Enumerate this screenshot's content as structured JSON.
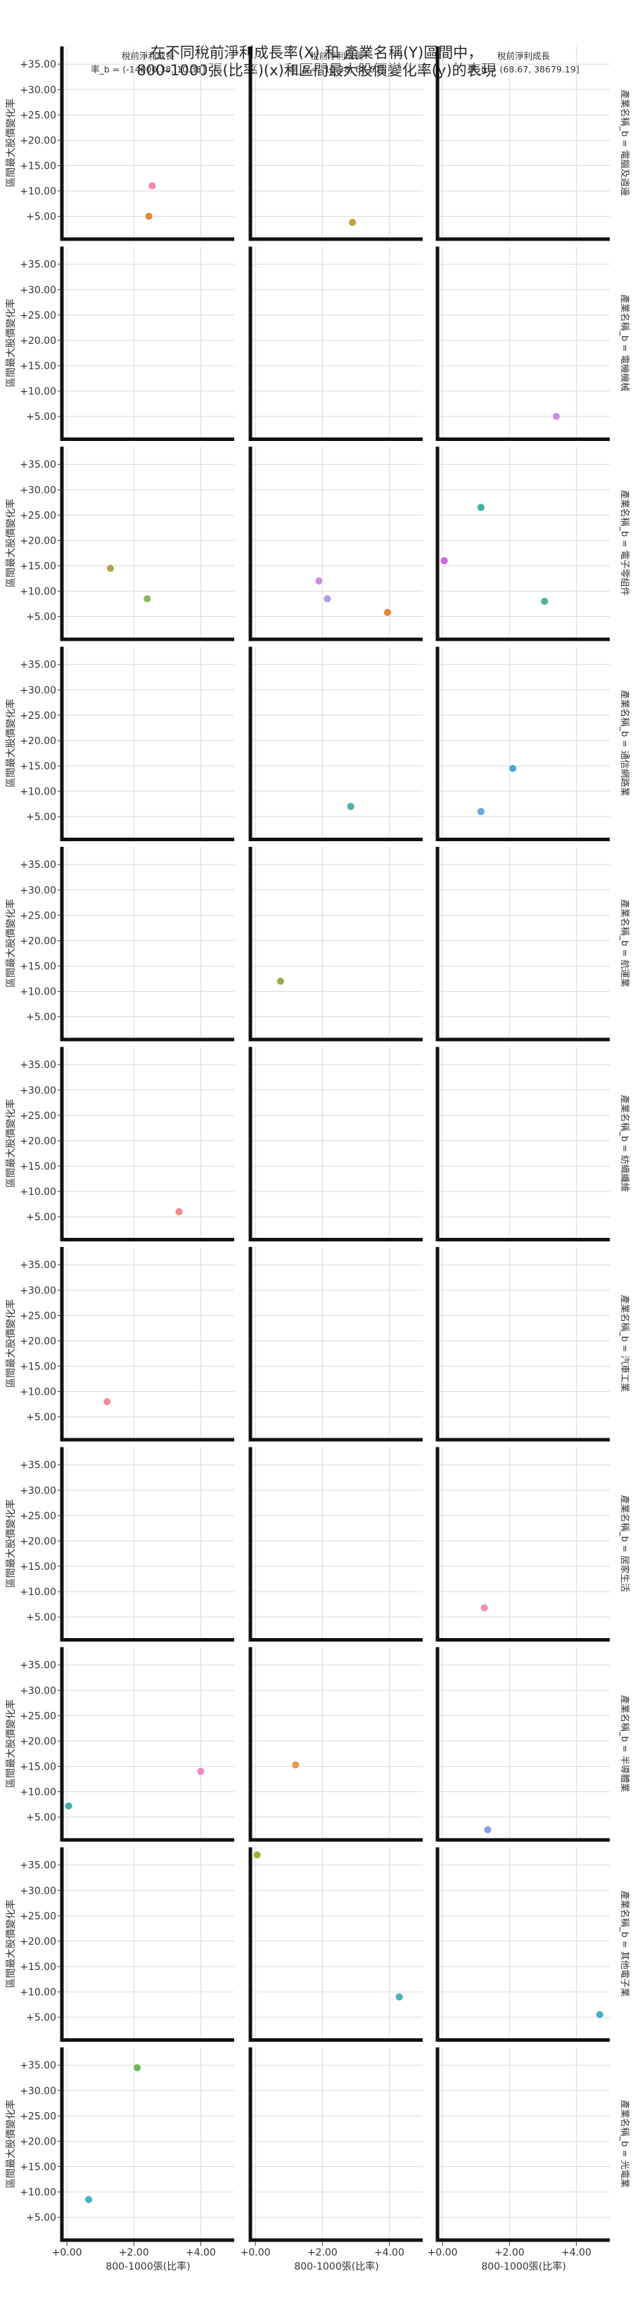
{
  "chart_data": {
    "type": "scatter",
    "title": "在不同稅前淨利成長率(X) 和 產業名稱(Y)區間中，\n800-1000張(比率)(x)和區間最大股價變化率(y)的表現",
    "xlabel": "800-1000張(比率)",
    "ylabel": "區間最大股價變化率",
    "columns": [
      "稅前淨利成長\n率_b = (-14000.38, 10.38]",
      "稅前淨利成長\n率_b = (10.38, 68.67]",
      "稅前淨利成長\n率_b = (68.67, 38679.19]"
    ],
    "rows": [
      "產業名稱_b = 電腦及週邊",
      "產業名稱_b = 電機機械",
      "產業名稱_b = 電子零組件",
      "產業名稱_b = 通信網路業",
      "產業名稱_b = 航運業",
      "產業名稱_b = 紡織纖維",
      "產業名稱_b = 汽車工業",
      "產業名稱_b = 居家生活",
      "產業名稱_b = 半導體業",
      "產業名稱_b = 其他電子業",
      "產業名稱_b = 光電業"
    ],
    "x_ticks": [
      "+0.00",
      "+2.00",
      "+4.00"
    ],
    "x_tick_values": [
      0,
      2,
      4
    ],
    "xlim": [
      -0.15,
      5.0
    ],
    "y_ticks": [
      "+5.00",
      "+10.00",
      "+15.00",
      "+20.00",
      "+25.00",
      "+30.00",
      "+35.00"
    ],
    "y_tick_values": [
      5,
      10,
      15,
      20,
      25,
      30,
      35
    ],
    "ylim": [
      0.5,
      38.5
    ],
    "grid": true,
    "points": [
      {
        "row": 0,
        "col": 0,
        "x": 2.55,
        "y": 11.0,
        "color": "#f28bb0"
      },
      {
        "row": 0,
        "col": 0,
        "x": 2.45,
        "y": 5.0,
        "color": "#e08a3c"
      },
      {
        "row": 0,
        "col": 1,
        "x": 2.9,
        "y": 3.8,
        "color": "#c4a24a"
      },
      {
        "row": 1,
        "col": 2,
        "x": 3.4,
        "y": 5.0,
        "color": "#cf8bec"
      },
      {
        "row": 2,
        "col": 0,
        "x": 1.3,
        "y": 14.5,
        "color": "#b8a44a"
      },
      {
        "row": 2,
        "col": 0,
        "x": 2.4,
        "y": 8.5,
        "color": "#8cb85a"
      },
      {
        "row": 2,
        "col": 1,
        "x": 1.9,
        "y": 12.0,
        "color": "#d18be8"
      },
      {
        "row": 2,
        "col": 1,
        "x": 2.15,
        "y": 8.5,
        "color": "#b49be8"
      },
      {
        "row": 2,
        "col": 1,
        "x": 3.95,
        "y": 5.8,
        "color": "#e08a3c"
      },
      {
        "row": 2,
        "col": 2,
        "x": 1.15,
        "y": 26.5,
        "color": "#3fb09e"
      },
      {
        "row": 2,
        "col": 2,
        "x": 0.05,
        "y": 16.0,
        "color": "#c96ae6"
      },
      {
        "row": 2,
        "col": 2,
        "x": 3.05,
        "y": 8.0,
        "color": "#52b48c"
      },
      {
        "row": 3,
        "col": 1,
        "x": 2.85,
        "y": 7.0,
        "color": "#4cb3b0"
      },
      {
        "row": 3,
        "col": 2,
        "x": 2.1,
        "y": 14.5,
        "color": "#4aa8d4"
      },
      {
        "row": 3,
        "col": 2,
        "x": 1.15,
        "y": 6.0,
        "color": "#6aa6d8"
      },
      {
        "row": 4,
        "col": 1,
        "x": 0.75,
        "y": 12.0,
        "color": "#9aad45"
      },
      {
        "row": 5,
        "col": 0,
        "x": 3.35,
        "y": 6.0,
        "color": "#ee8c87"
      },
      {
        "row": 6,
        "col": 0,
        "x": 1.2,
        "y": 8.0,
        "color": "#f28b94"
      },
      {
        "row": 7,
        "col": 2,
        "x": 1.25,
        "y": 6.8,
        "color": "#f08cb0"
      },
      {
        "row": 8,
        "col": 0,
        "x": 0.05,
        "y": 7.2,
        "color": "#3fb0a8"
      },
      {
        "row": 8,
        "col": 0,
        "x": 4.0,
        "y": 14.0,
        "color": "#ea8ac8"
      },
      {
        "row": 8,
        "col": 1,
        "x": 1.2,
        "y": 15.3,
        "color": "#e89a4f"
      },
      {
        "row": 8,
        "col": 2,
        "x": 1.35,
        "y": 2.5,
        "color": "#7fa3ea"
      },
      {
        "row": 9,
        "col": 1,
        "x": 0.05,
        "y": 37.0,
        "color": "#a6aa3e"
      },
      {
        "row": 9,
        "col": 1,
        "x": 4.3,
        "y": 9.0,
        "color": "#4cb3c0"
      },
      {
        "row": 9,
        "col": 2,
        "x": 4.7,
        "y": 5.5,
        "color": "#45b3c4"
      },
      {
        "row": 10,
        "col": 0,
        "x": 2.1,
        "y": 34.5,
        "color": "#6fba57"
      },
      {
        "row": 10,
        "col": 0,
        "x": 0.65,
        "y": 8.5,
        "color": "#3fb4c8"
      }
    ]
  }
}
